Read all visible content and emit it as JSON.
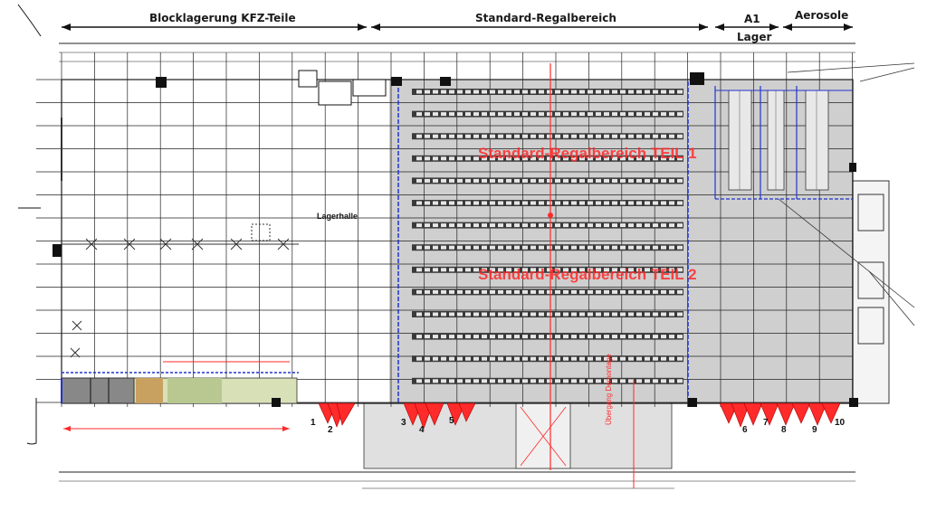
{
  "zones": {
    "block": "Blocklagerung KFZ-Teile",
    "standard": "Standard-Regalbereich",
    "a1": "A1",
    "a1_sub": "Lager",
    "aerosole": "Aerosole"
  },
  "areas": {
    "teil1": "Standard-Regalbereich TEIL 1",
    "teil2": "Standard-Regalbereich TEIL 2",
    "hall": "Lagerhalle",
    "vertical": "Übergang Demontage"
  },
  "docks": [
    "1",
    "2",
    "3",
    "4",
    "5",
    "6",
    "7",
    "8",
    "9",
    "10"
  ],
  "colors": {
    "shaded": "#cfcfcf",
    "rack": "#3a3a3a",
    "accent_red": "#ff2a2a",
    "accent_blue": "#2233cc"
  }
}
